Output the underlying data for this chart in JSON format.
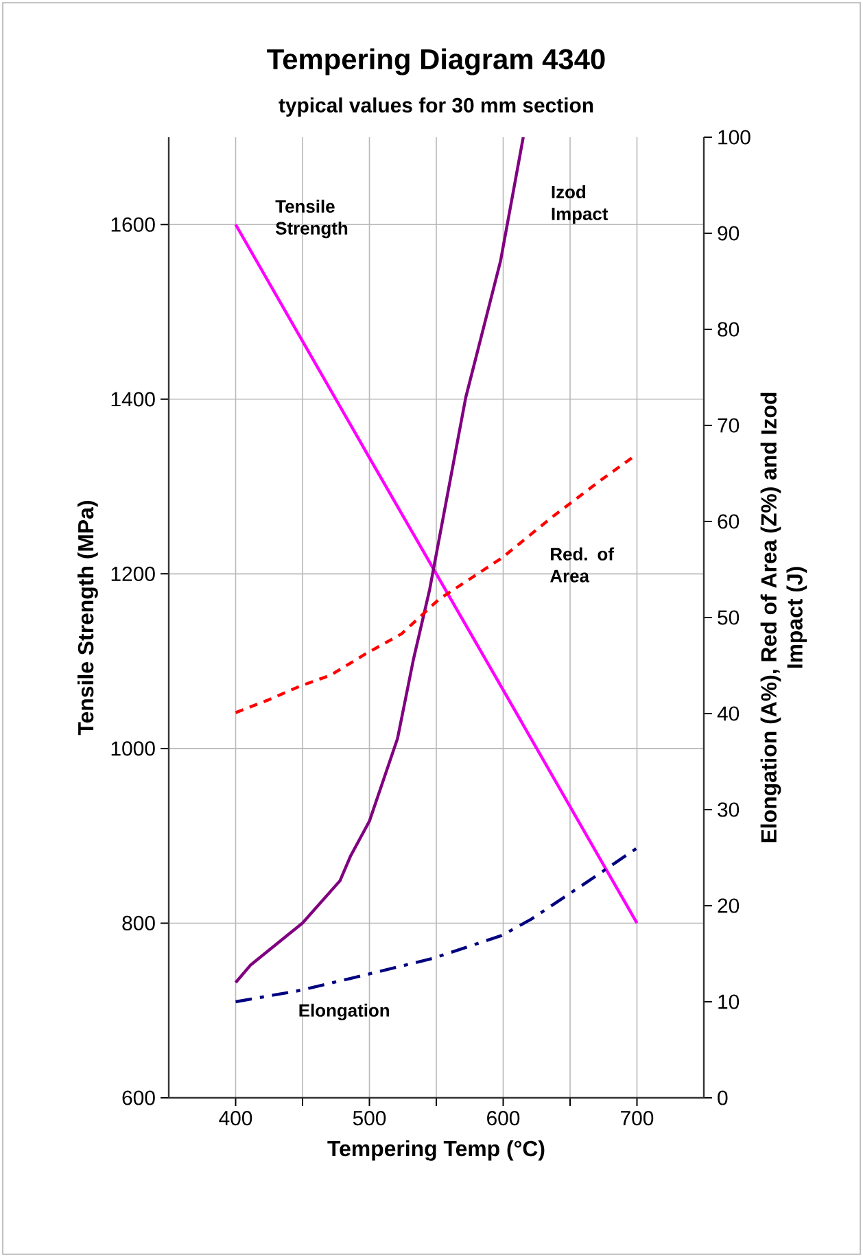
{
  "chart_data": {
    "type": "line",
    "title": "Tempering Diagram 4340",
    "subtitle": "typical values for 30 mm section",
    "xlabel": "Tempering Temp (°C)",
    "ylabel": "Tensile Strength (MPa)",
    "y2label": "Elongation (A%), Red of Area (Z%) and Izod Impact (J)",
    "xlim": [
      350,
      750
    ],
    "xticks": [
      400,
      {
        "value": 450,
        "label": null
      },
      500,
      {
        "value": 550,
        "label": null
      },
      600,
      {
        "value": 650,
        "label": null
      },
      700
    ],
    "ylim": [
      600,
      1700
    ],
    "yticks": [
      600,
      800,
      1000,
      1200,
      1400,
      1600
    ],
    "y2lim": [
      0,
      100
    ],
    "y2ticks": [
      0,
      10,
      20,
      30,
      40,
      50,
      60,
      70,
      80,
      90,
      100
    ],
    "grid": true,
    "legend": false,
    "marker": "none",
    "series": [
      {
        "name": "Tensile Strength",
        "color": "#ff00ff",
        "line_style": "solid",
        "x": [
          400,
          500,
          600,
          700
        ],
        "values": [
          1600,
          1333,
          1067,
          800
        ]
      },
      {
        "name": "Izod Impact",
        "color": "#800080",
        "line_style": "solid",
        "axis": "y2",
        "x": [
          400,
          411,
          450,
          478,
          486,
          500,
          521,
          533,
          545,
          572,
          585,
          598,
          615
        ],
        "values": [
          12,
          13.8,
          18.2,
          22.6,
          25.2,
          28.8,
          37.4,
          45.7,
          52.9,
          72.9,
          80,
          87.1,
          100
        ]
      },
      {
        "name": "Red. of Area",
        "color": "#ff0000",
        "line_style": "dotted",
        "axis": "y2",
        "x": [
          400,
          424,
          449,
          471,
          497,
          524,
          552,
          599,
          637,
          675,
          700
        ],
        "values": [
          40.1,
          41.4,
          42.9,
          44,
          46.2,
          48.3,
          51.9,
          56.2,
          60.5,
          64.5,
          67
        ]
      },
      {
        "name": "Elongation",
        "color": "#000080",
        "line_style": "dashed",
        "axis": "y2",
        "x": [
          400,
          449,
          500,
          547,
          599,
          621,
          662,
          700
        ],
        "values": [
          10,
          11.2,
          12.9,
          14.5,
          16.9,
          18.6,
          22.4,
          26
        ]
      }
    ]
  }
}
